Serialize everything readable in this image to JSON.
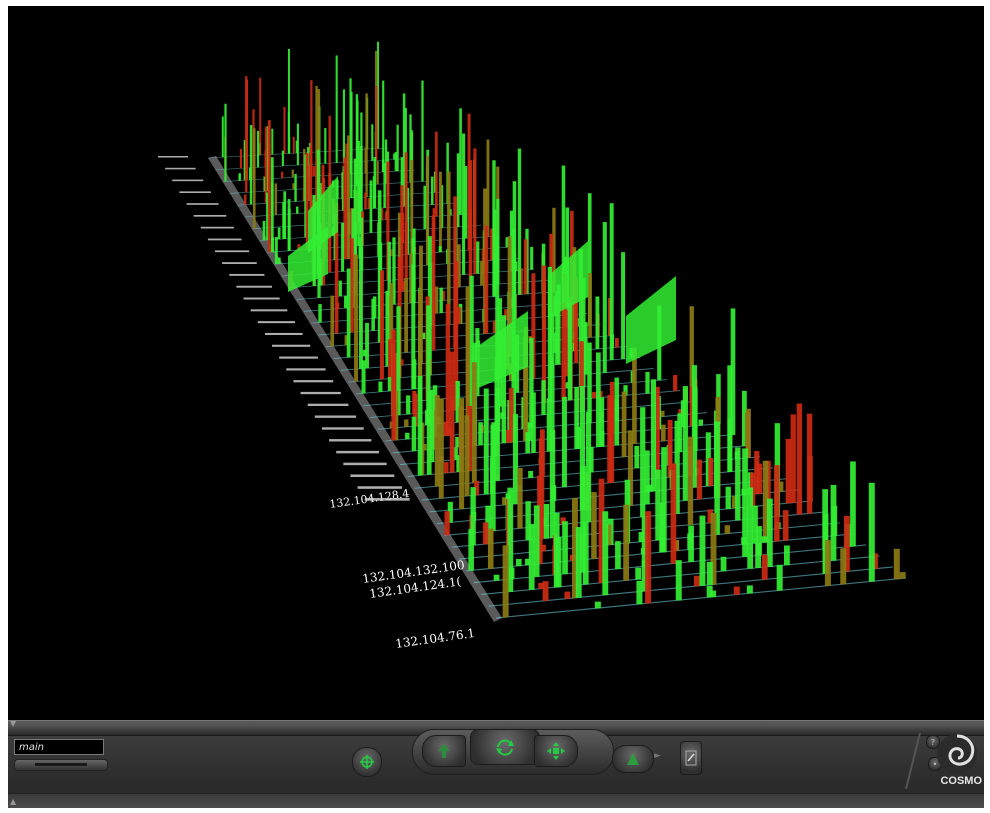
{
  "viewer": {
    "viewpoint_value": "main",
    "logo_label": "COSMO"
  },
  "host_labels": [
    "132.104.128.4",
    "132.104.132.100",
    "132.104.124.1(",
    "132.104.76.1"
  ],
  "colors": {
    "background": "#000000",
    "bar_green": "#33ee33",
    "bar_red": "#cc2a14",
    "bar_olive": "#8c7a14",
    "grid_line": "#6fd6e6",
    "toolbar": "#333333",
    "button_icon": "#22cc44"
  },
  "toolbar_icons": [
    "seek-icon",
    "walk-icon",
    "rotate-icon",
    "pan-icon",
    "tilt-icon",
    "edit-icon",
    "help-icon",
    "settings-icon",
    "cosmo-logo-icon"
  ]
}
